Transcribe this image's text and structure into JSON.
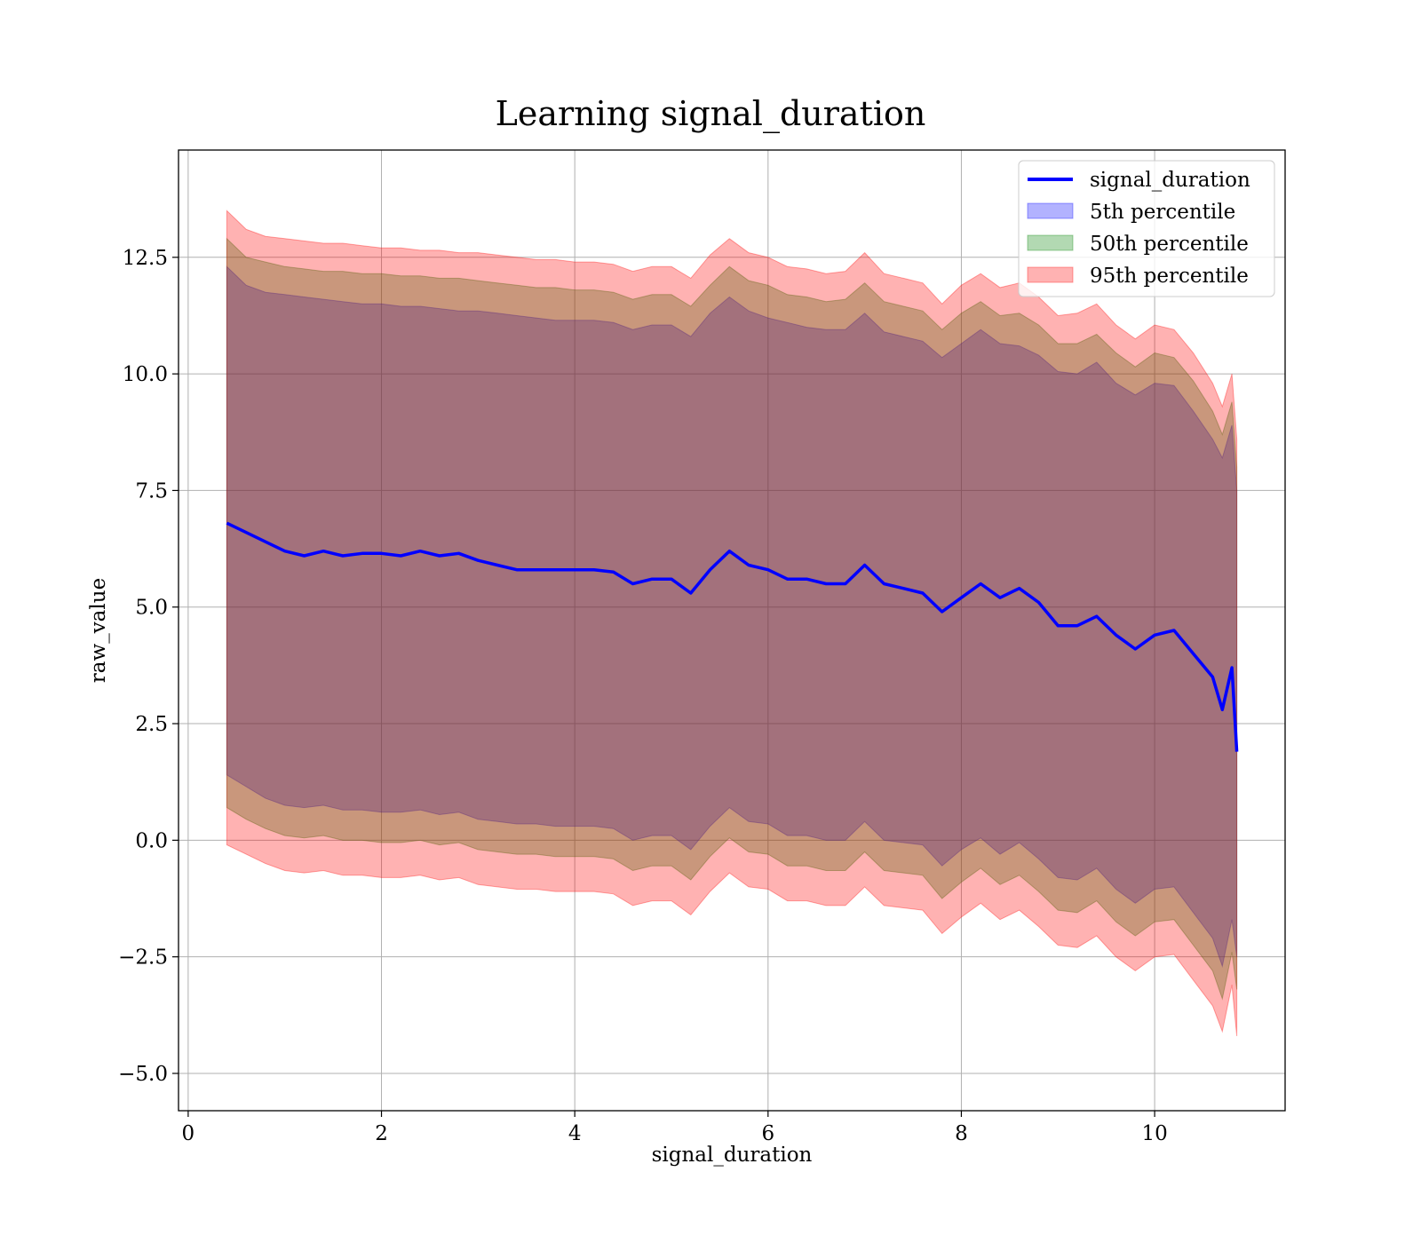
{
  "colors": {
    "mean_line": "#0000ff",
    "band_5th": "#0000ff",
    "band_50th": "#008000",
    "band_95th": "#ff0000",
    "grid": "#b0b0b0"
  },
  "chart_data": {
    "type": "area",
    "title": "Learning signal_duration",
    "xlabel": "signal_duration",
    "ylabel": "raw_value",
    "xlim": [
      -0.1,
      11.35
    ],
    "ylim": [
      -5.8,
      14.8
    ],
    "x_ticks": [
      0,
      2,
      4,
      6,
      8,
      10
    ],
    "x_tick_labels": [
      "0",
      "2",
      "4",
      "6",
      "8",
      "10"
    ],
    "y_ticks": [
      -5.0,
      -2.5,
      0.0,
      2.5,
      5.0,
      7.5,
      10.0,
      12.5
    ],
    "y_tick_labels": [
      "−5.0",
      "−2.5",
      "0.0",
      "2.5",
      "5.0",
      "7.5",
      "10.0",
      "12.5"
    ],
    "grid": true,
    "legend_position": "top-right",
    "legend": [
      "signal_duration",
      "5th percentile",
      "50th percentile",
      "95th percentile"
    ],
    "x": [
      0.4,
      0.6,
      0.8,
      1.0,
      1.2,
      1.4,
      1.6,
      1.8,
      2.0,
      2.2,
      2.4,
      2.6,
      2.8,
      3.0,
      3.2,
      3.4,
      3.6,
      3.8,
      4.0,
      4.2,
      4.4,
      4.6,
      4.8,
      5.0,
      5.2,
      5.4,
      5.6,
      5.8,
      6.0,
      6.2,
      6.4,
      6.6,
      6.8,
      7.0,
      7.2,
      7.4,
      7.6,
      7.8,
      8.0,
      8.2,
      8.4,
      8.6,
      8.8,
      9.0,
      9.2,
      9.4,
      9.6,
      9.8,
      10.0,
      10.2,
      10.4,
      10.6,
      10.7,
      10.8,
      10.85
    ],
    "series": [
      {
        "name": "signal_duration",
        "kind": "line",
        "values": [
          6.8,
          6.6,
          6.4,
          6.2,
          6.1,
          6.2,
          6.1,
          6.15,
          6.15,
          6.1,
          6.2,
          6.1,
          6.15,
          6.0,
          5.9,
          5.8,
          5.8,
          5.8,
          5.8,
          5.8,
          5.75,
          5.5,
          5.6,
          5.6,
          5.3,
          5.8,
          6.2,
          5.9,
          5.8,
          5.6,
          5.6,
          5.5,
          5.5,
          5.9,
          5.5,
          5.4,
          5.3,
          4.9,
          5.2,
          5.5,
          5.2,
          5.4,
          5.1,
          4.6,
          4.6,
          4.8,
          4.4,
          4.1,
          4.4,
          4.5,
          4.0,
          3.5,
          2.8,
          3.7,
          1.9
        ]
      },
      {
        "name": "5th percentile",
        "kind": "band",
        "upper": [
          12.3,
          11.9,
          11.75,
          11.7,
          11.65,
          11.6,
          11.55,
          11.5,
          11.5,
          11.45,
          11.45,
          11.4,
          11.35,
          11.35,
          11.3,
          11.25,
          11.2,
          11.15,
          11.15,
          11.15,
          11.1,
          10.95,
          11.05,
          11.05,
          10.8,
          11.3,
          11.65,
          11.35,
          11.2,
          11.1,
          11.0,
          10.95,
          10.95,
          11.3,
          10.9,
          10.8,
          10.7,
          10.35,
          10.65,
          10.95,
          10.65,
          10.6,
          10.4,
          10.05,
          10.0,
          10.25,
          9.8,
          9.55,
          9.8,
          9.75,
          9.2,
          8.6,
          8.2,
          8.9,
          7.5
        ],
        "lower": [
          1.4,
          1.15,
          0.9,
          0.75,
          0.7,
          0.75,
          0.65,
          0.65,
          0.6,
          0.6,
          0.65,
          0.55,
          0.6,
          0.45,
          0.4,
          0.35,
          0.35,
          0.3,
          0.3,
          0.3,
          0.25,
          0.0,
          0.1,
          0.1,
          -0.2,
          0.3,
          0.7,
          0.4,
          0.35,
          0.1,
          0.1,
          0.0,
          0.0,
          0.4,
          0.0,
          -0.05,
          -0.1,
          -0.55,
          -0.2,
          0.05,
          -0.3,
          -0.05,
          -0.4,
          -0.8,
          -0.85,
          -0.6,
          -1.05,
          -1.35,
          -1.05,
          -1.0,
          -1.55,
          -2.1,
          -2.7,
          -1.7,
          -2.5
        ]
      },
      {
        "name": "50th percentile",
        "kind": "band",
        "upper": [
          12.9,
          12.5,
          12.4,
          12.3,
          12.25,
          12.2,
          12.2,
          12.15,
          12.15,
          12.1,
          12.1,
          12.05,
          12.05,
          12.0,
          11.95,
          11.9,
          11.85,
          11.85,
          11.8,
          11.8,
          11.75,
          11.6,
          11.7,
          11.7,
          11.45,
          11.9,
          12.3,
          12.0,
          11.9,
          11.7,
          11.65,
          11.55,
          11.6,
          11.95,
          11.55,
          11.45,
          11.35,
          10.95,
          11.3,
          11.55,
          11.25,
          11.3,
          11.05,
          10.65,
          10.65,
          10.85,
          10.45,
          10.15,
          10.45,
          10.35,
          9.85,
          9.2,
          8.7,
          9.4,
          8.0
        ],
        "lower": [
          0.7,
          0.45,
          0.25,
          0.1,
          0.05,
          0.1,
          0.0,
          0.0,
          -0.05,
          -0.05,
          0.0,
          -0.1,
          -0.05,
          -0.2,
          -0.25,
          -0.3,
          -0.3,
          -0.35,
          -0.35,
          -0.35,
          -0.4,
          -0.65,
          -0.55,
          -0.55,
          -0.85,
          -0.35,
          0.05,
          -0.25,
          -0.3,
          -0.55,
          -0.55,
          -0.65,
          -0.65,
          -0.25,
          -0.65,
          -0.7,
          -0.75,
          -1.25,
          -0.9,
          -0.6,
          -0.95,
          -0.75,
          -1.1,
          -1.5,
          -1.55,
          -1.3,
          -1.75,
          -2.05,
          -1.75,
          -1.7,
          -2.25,
          -2.8,
          -3.4,
          -2.4,
          -3.2
        ]
      },
      {
        "name": "95th percentile",
        "kind": "band",
        "upper": [
          13.5,
          13.1,
          12.95,
          12.9,
          12.85,
          12.8,
          12.8,
          12.75,
          12.7,
          12.7,
          12.65,
          12.65,
          12.6,
          12.6,
          12.55,
          12.5,
          12.45,
          12.45,
          12.4,
          12.4,
          12.35,
          12.2,
          12.3,
          12.3,
          12.05,
          12.55,
          12.9,
          12.6,
          12.5,
          12.3,
          12.25,
          12.15,
          12.2,
          12.6,
          12.15,
          12.05,
          11.95,
          11.5,
          11.9,
          12.15,
          11.85,
          11.95,
          11.65,
          11.25,
          11.3,
          11.5,
          11.05,
          10.75,
          11.05,
          10.95,
          10.45,
          9.8,
          9.3,
          10.0,
          8.6
        ],
        "lower": [
          -0.1,
          -0.3,
          -0.5,
          -0.65,
          -0.7,
          -0.65,
          -0.75,
          -0.75,
          -0.8,
          -0.8,
          -0.75,
          -0.85,
          -0.8,
          -0.95,
          -1.0,
          -1.05,
          -1.05,
          -1.1,
          -1.1,
          -1.1,
          -1.15,
          -1.4,
          -1.3,
          -1.3,
          -1.6,
          -1.1,
          -0.7,
          -1.0,
          -1.05,
          -1.3,
          -1.3,
          -1.4,
          -1.4,
          -1.0,
          -1.4,
          -1.45,
          -1.5,
          -2.0,
          -1.65,
          -1.35,
          -1.7,
          -1.5,
          -1.85,
          -2.25,
          -2.3,
          -2.05,
          -2.5,
          -2.8,
          -2.5,
          -2.45,
          -3.0,
          -3.55,
          -4.1,
          -3.1,
          -4.2
        ]
      }
    ]
  }
}
